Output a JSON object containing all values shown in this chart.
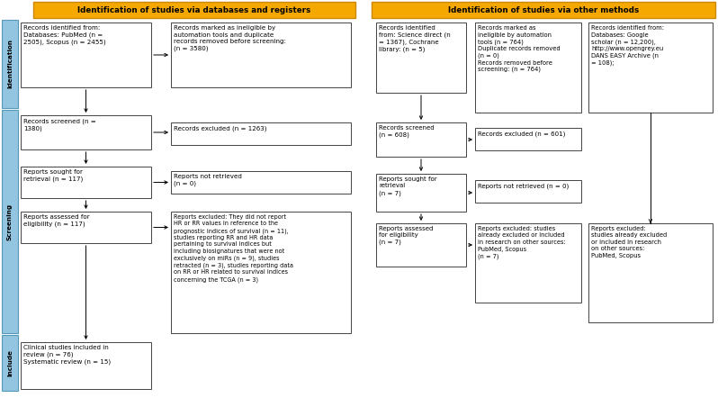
{
  "header_left": "Identification of studies via databases and registers",
  "header_right": "Identification of studies via other methods",
  "header_color": "#F5A800",
  "sidebar_color": "#93C4E0",
  "boxes": {
    "db_id": "Records identified from:\nDatabases: PubMed (n =\n2505), Scopus (n = 2455)",
    "db_excluded": "Records marked as ineligible by\nautomation tools and duplicate\nrecords removed before screening:\n(n = 3580)",
    "db_screened": "Records screened (n =\n1380)",
    "db_excl_screen": "Records excluded (n = 1263)",
    "db_retrieval": "Reports sought for\nretrieval (n = 117)",
    "db_not_retrieved": "Reports not retrieved\n(n = 0)",
    "db_eligibility": "Reports assessed for\neligibility (n = 117)",
    "db_excl_elig": "Reports excluded: They did not report\nHR or RR values in reference to the\nprognostic indices of survival (n = 11),\nstudies reporting RR and HR data\npertaining to survival indices but\nincluding biosignatures that were not\nexclusively on miRs (n = 9), studies\nretracted (n = 3), studies reporting data\non RR or HR related to survival indices\nconcerning the TCGA (n = 3)",
    "db_included": "Clinical studies included in\nreview (n = 76)\nSystematic review (n = 15)",
    "other_id": "Records identified\nfrom: Science direct (n\n= 1367), Cochrane\nlibrary: (n = 5)",
    "other_excluded": "Records marked as\nineligible by automation\ntools (n = 764)\nDuplicate records removed\n(n = 0)\nRecords removed before\nscreening: (n = 764)",
    "other_google": "Records identified from:\nDatabases: Google\nscholar (n = 12,200),\nhttp://www.opengrey.eu\nDANS EASY Archive (n\n= 108);",
    "other_screened": "Records screened\n(n = 608)",
    "other_excl_screen": "Records excluded (n = 601)",
    "other_retrieval": "Reports sought for\nretrieval\n(n = 7)",
    "other_not_retrieved": "Reports not retrieved (n = 0)",
    "other_eligibility": "Reports assessed\nfor eligibility\n(n = 7)",
    "other_excl_elig": "Reports excluded: studies\nalready excluded or included\nin research on other sources:\nPubMed, Scopus\n(n = 7)",
    "other_excl_google": "Reports excluded:\nstudies already excluded\nor included in research\non other sources:\nPubMed, Scopus"
  }
}
